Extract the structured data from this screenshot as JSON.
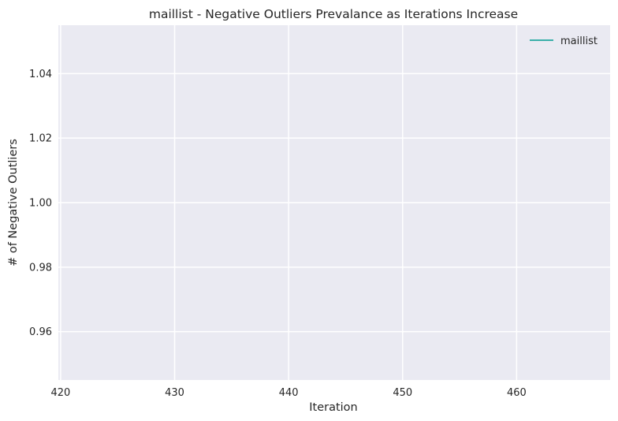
{
  "chart_data": {
    "type": "line",
    "title": "maillist - Negative Outliers Prevalance as Iterations Increase",
    "xlabel": "Iteration",
    "ylabel": "# of Negative Outliers",
    "xlim": [
      419.8,
      468.2
    ],
    "ylim": [
      0.945,
      1.055
    ],
    "xticks": [
      420,
      430,
      440,
      450,
      460
    ],
    "xtick_labels": [
      "420",
      "430",
      "440",
      "450",
      "460"
    ],
    "yticks": [
      0.96,
      0.98,
      1.0,
      1.02,
      1.04
    ],
    "ytick_labels": [
      "0.96",
      "0.98",
      "1.00",
      "1.02",
      "1.04"
    ],
    "grid": true,
    "legend_position": "top-right",
    "series": [
      {
        "name": "maillist",
        "color": "#3aafa9",
        "x": [],
        "y": []
      }
    ],
    "background_color": "#eaeaf2",
    "grid_color": "#ffffff"
  }
}
